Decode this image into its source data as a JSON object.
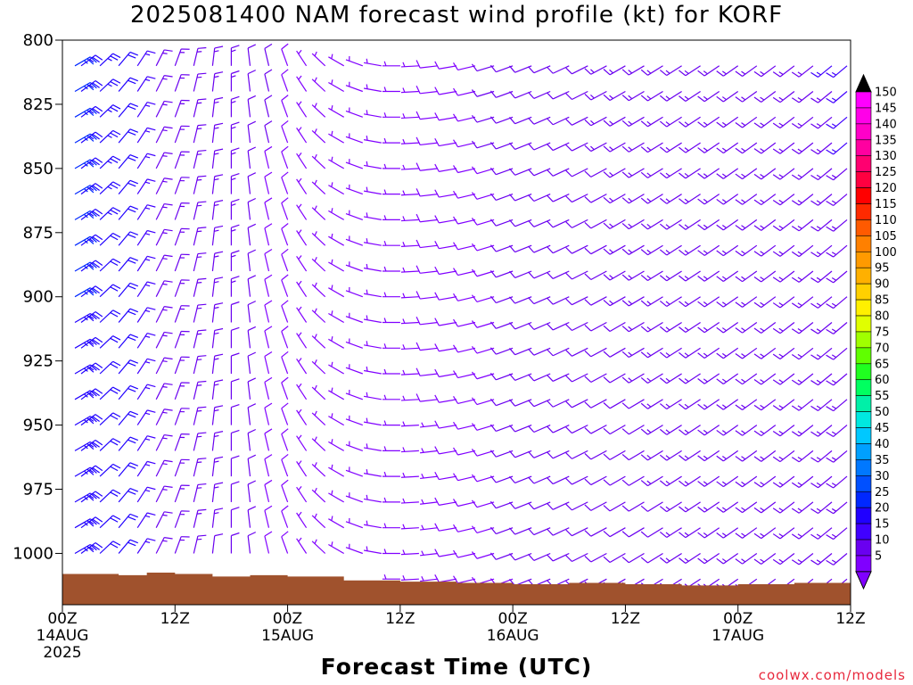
{
  "title": "2025081400 NAM forecast wind profile (kt) for KORF",
  "xlabel": "Forecast Time (UTC)",
  "credit": "coolwx.com/models",
  "chart_data": {
    "type": "wind_barbs",
    "title": "2025081400 NAM forecast wind profile (kt) for KORF",
    "xlabel": "Forecast Time (UTC)",
    "ylabel": "",
    "units": "kt",
    "x_hours_range": [
      0,
      84
    ],
    "x_tick_hours": [
      0,
      12,
      24,
      36,
      48,
      60,
      72,
      84
    ],
    "x_tick_labels": [
      [
        "00Z",
        "14AUG",
        "2025"
      ],
      [
        "12Z"
      ],
      [
        "00Z",
        "15AUG"
      ],
      [
        "12Z"
      ],
      [
        "00Z",
        "16AUG"
      ],
      [
        "12Z"
      ],
      [
        "00Z",
        "17AUG"
      ],
      [
        "12Z"
      ]
    ],
    "y_pressure_range_hPa": [
      800,
      1020
    ],
    "y_ticks_hPa": [
      800,
      825,
      850,
      875,
      900,
      925,
      950,
      975,
      1000
    ],
    "y_tick_labels": [
      "800",
      "825",
      "850",
      "875",
      "900",
      "925",
      "950",
      "975",
      "1000"
    ],
    "colorbar": {
      "levels": [
        5,
        10,
        15,
        20,
        25,
        30,
        35,
        40,
        45,
        50,
        55,
        60,
        65,
        70,
        75,
        80,
        85,
        90,
        95,
        100,
        105,
        110,
        115,
        120,
        125,
        130,
        135,
        140,
        145,
        150
      ],
      "colors": [
        "#8000ff",
        "#6a00f0",
        "#4000ff",
        "#2000ff",
        "#0028ff",
        "#0050ff",
        "#0078ff",
        "#00a0ff",
        "#00c8ff",
        "#00e8e0",
        "#00f0a8",
        "#00ff60",
        "#20ff20",
        "#60ff00",
        "#a0ff00",
        "#e0ff00",
        "#fff000",
        "#ffd000",
        "#ffb000",
        "#ff9a00",
        "#ff8000",
        "#ff5a00",
        "#ff2a00",
        "#ff0000",
        "#ff0040",
        "#ff0070",
        "#ff00a0",
        "#ff00c8",
        "#ff00e8",
        "#ff00ff"
      ]
    },
    "barb_columns_hours": [
      0,
      2,
      4,
      6,
      8,
      10,
      12,
      14,
      16,
      18,
      20,
      22,
      24,
      26,
      28,
      30,
      32,
      34,
      36,
      38,
      40,
      42,
      44,
      46,
      48,
      50,
      52,
      54,
      56,
      58,
      60,
      62,
      64,
      66,
      68,
      70,
      72,
      74,
      76,
      78,
      80,
      82,
      84
    ],
    "barb_levels_hPa": [
      800,
      810,
      820,
      830,
      840,
      850,
      860,
      870,
      880,
      890,
      900,
      910,
      920,
      930,
      940,
      950,
      960,
      970,
      980,
      990,
      1000,
      1010
    ],
    "wind_speed_by_hour_kt": [
      [
        0,
        24
      ],
      [
        6,
        20
      ],
      [
        9,
        14
      ],
      [
        18,
        12
      ],
      [
        27,
        6
      ],
      [
        32,
        4
      ],
      [
        36,
        6
      ],
      [
        48,
        10
      ],
      [
        60,
        12
      ],
      [
        72,
        13
      ],
      [
        84,
        14
      ]
    ],
    "wind_direction_by_hour_deg": [
      [
        0,
        60
      ],
      [
        9,
        30
      ],
      [
        24,
        340
      ],
      [
        30,
        300
      ],
      [
        36,
        270
      ],
      [
        48,
        250
      ],
      [
        60,
        240
      ],
      [
        84,
        230
      ]
    ],
    "surface_pressure_hPa": [
      [
        0,
        1008
      ],
      [
        3,
        1008
      ],
      [
        6,
        1008.5
      ],
      [
        9,
        1007.5
      ],
      [
        12,
        1008
      ],
      [
        16,
        1009
      ],
      [
        20,
        1008.5
      ],
      [
        24,
        1009
      ],
      [
        30,
        1010.5
      ],
      [
        36,
        1011
      ],
      [
        42,
        1011.5
      ],
      [
        48,
        1012
      ],
      [
        54,
        1011.5
      ],
      [
        60,
        1012
      ],
      [
        66,
        1012.5
      ],
      [
        72,
        1012
      ],
      [
        78,
        1011.5
      ],
      [
        84,
        1012
      ]
    ],
    "terrain_color": "#a0522d"
  }
}
